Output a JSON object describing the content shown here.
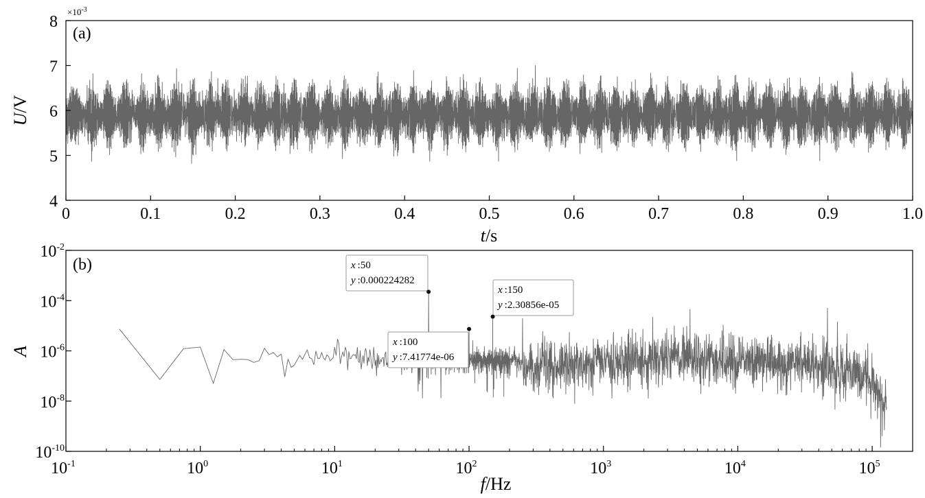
{
  "chart_data": [
    {
      "panel_label": "(a)",
      "type": "line",
      "series_color": "#666666",
      "x_label_italic": "t",
      "x_label_unit": "/s",
      "y_label_italic": "U",
      "y_label_unit": "/V",
      "y_multiplier_base": "×10",
      "y_multiplier_exp": "-3",
      "xlim": [
        0,
        1.0
      ],
      "ylim": [
        0.004,
        0.008
      ],
      "x_ticks": [
        {
          "v": 0.0,
          "label": "0"
        },
        {
          "v": 0.1,
          "label": "0.1"
        },
        {
          "v": 0.2,
          "label": "0.2"
        },
        {
          "v": 0.3,
          "label": "0.3"
        },
        {
          "v": 0.4,
          "label": "0.4"
        },
        {
          "v": 0.5,
          "label": "0.5"
        },
        {
          "v": 0.6,
          "label": "0.6"
        },
        {
          "v": 0.7,
          "label": "0.7"
        },
        {
          "v": 0.8,
          "label": "0.8"
        },
        {
          "v": 0.9,
          "label": "0.9"
        },
        {
          "v": 1.0,
          "label": "1.0"
        }
      ],
      "y_ticks": [
        {
          "v": 0.004,
          "label": "4"
        },
        {
          "v": 0.005,
          "label": "5"
        },
        {
          "v": 0.006,
          "label": "6"
        },
        {
          "v": 0.007,
          "label": "7"
        },
        {
          "v": 0.008,
          "label": "8"
        }
      ],
      "signal": {
        "mean": 0.0059,
        "modulation_hz": 50,
        "envelope_min": 0.0047,
        "envelope_max": 0.0071
      }
    },
    {
      "panel_label": "(b)",
      "type": "line",
      "scale": "log-log",
      "series_color": "#666666",
      "x_label_italic": "f",
      "x_label_unit": "/Hz",
      "y_label_italic": "A",
      "xlim": [
        0.1,
        200000
      ],
      "ylim": [
        1e-10,
        0.01
      ],
      "x_ticks": [
        {
          "v": 0.1,
          "base": "10",
          "exp": "-1"
        },
        {
          "v": 1,
          "base": "10",
          "exp": "0"
        },
        {
          "v": 10,
          "base": "10",
          "exp": "1"
        },
        {
          "v": 100,
          "base": "10",
          "exp": "2"
        },
        {
          "v": 1000,
          "base": "10",
          "exp": "3"
        },
        {
          "v": 10000,
          "base": "10",
          "exp": "4"
        },
        {
          "v": 100000,
          "base": "10",
          "exp": "5"
        }
      ],
      "y_ticks": [
        {
          "v": 1e-10,
          "base": "10",
          "exp": "-10"
        },
        {
          "v": 1e-08,
          "base": "10",
          "exp": "-8"
        },
        {
          "v": 1e-06,
          "base": "10",
          "exp": "-6"
        },
        {
          "v": 0.0001,
          "base": "10",
          "exp": "-4"
        },
        {
          "v": 0.01,
          "base": "10",
          "exp": "-2"
        }
      ],
      "spectrum_x_range_hz": [
        0.25,
        128000
      ],
      "peaks": [
        {
          "x": 50,
          "y": 0.000224282,
          "x_text": ":50",
          "y_text": ":0.000224282"
        },
        {
          "x": 100,
          "y": 7.41774e-06,
          "x_text": ":100",
          "y_text": ":7.41774e-06"
        },
        {
          "x": 150,
          "y": 2.30856e-05,
          "x_text": ":150",
          "y_text": ":2.30856e-05"
        },
        {
          "x": 250,
          "y": 2e-05
        }
      ],
      "datatip_x_label": "x",
      "datatip_y_label": "y"
    }
  ]
}
